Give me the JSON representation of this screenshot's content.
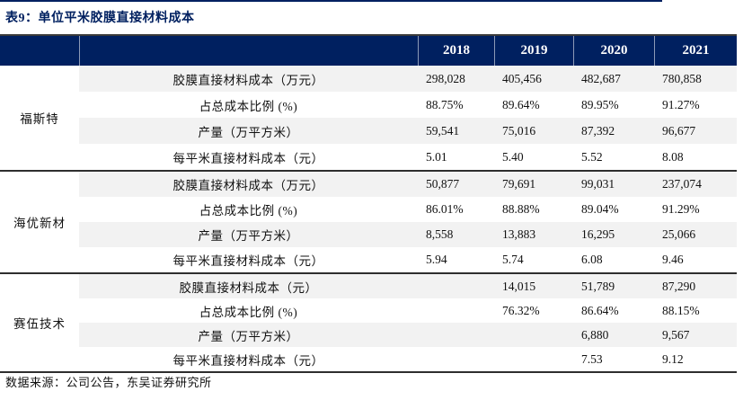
{
  "title": "表9：单位平米胶膜直接材料成本",
  "colors": {
    "navy": "#002060",
    "stripe": "#F2F2F2",
    "separator": "#2e2e2e"
  },
  "table": {
    "year_headers": [
      "2018",
      "2019",
      "2020",
      "2021"
    ],
    "groups": [
      {
        "company": "福斯特",
        "rows": [
          {
            "label": "胶膜直接材料成本（万元）",
            "values": [
              "298,028",
              "405,456",
              "482,687",
              "780,858"
            ]
          },
          {
            "label": "占总成本比例 (%)",
            "values": [
              "88.75%",
              "89.64%",
              "89.95%",
              "91.27%"
            ]
          },
          {
            "label": "产量（万平方米）",
            "values": [
              "59,541",
              "75,016",
              "87,392",
              "96,677"
            ]
          },
          {
            "label": "每平米直接材料成本（元）",
            "values": [
              "5.01",
              "5.40",
              "5.52",
              "8.08"
            ]
          }
        ]
      },
      {
        "company": "海优新材",
        "rows": [
          {
            "label": "胶膜直接材料成本（万元）",
            "values": [
              "50,877",
              "79,691",
              "99,031",
              "237,074"
            ]
          },
          {
            "label": "占总成本比例 (%)",
            "values": [
              "86.01%",
              "88.88%",
              "89.04%",
              "91.29%"
            ]
          },
          {
            "label": "产量（万平方米）",
            "values": [
              "8,558",
              "13,883",
              "16,295",
              "25,066"
            ]
          },
          {
            "label": "每平米直接材料成本（元）",
            "values": [
              "5.94",
              "5.74",
              "6.08",
              "9.46"
            ]
          }
        ]
      },
      {
        "company": "赛伍技术",
        "rows": [
          {
            "label": "胶膜直接材料成本（元）",
            "values": [
              "",
              "14,015",
              "51,789",
              "87,290"
            ]
          },
          {
            "label": "占总成本比例 (%)",
            "values": [
              "",
              "76.32%",
              "86.64%",
              "88.15%"
            ]
          },
          {
            "label": "产量（万平方米）",
            "values": [
              "",
              "",
              "6,880",
              "9,567"
            ]
          },
          {
            "label": "每平米直接材料成本（元）",
            "values": [
              "",
              "",
              "7.53",
              "9.12"
            ]
          }
        ]
      }
    ]
  },
  "footer": {
    "source": "数据来源：公司公告，东吴证券研究所"
  }
}
